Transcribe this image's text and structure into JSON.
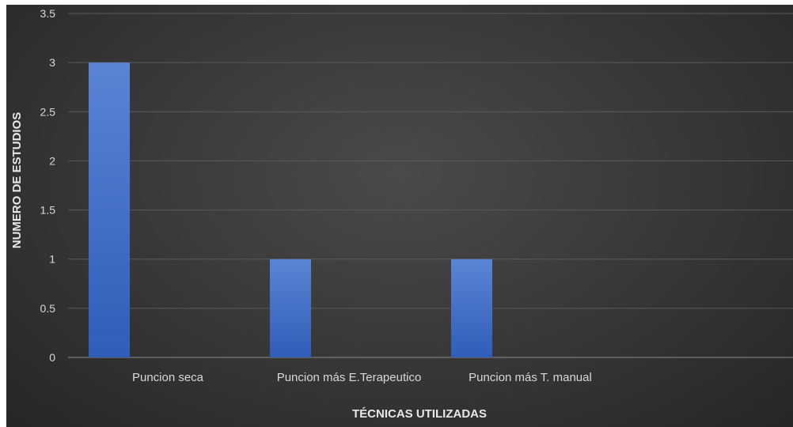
{
  "chart_data": {
    "type": "bar",
    "title": "",
    "xlabel": "TÉCNICAS UTILIZADAS",
    "ylabel": "NUMERO DE ESTUDIOS",
    "categories": [
      "Puncion seca",
      "Puncion más E.Terapeutico",
      "Puncion más T. manual",
      ""
    ],
    "values": [
      3,
      1,
      1,
      null
    ],
    "ylim": [
      0,
      3.5
    ],
    "yticks": [
      "0",
      "0.5",
      "1",
      "1.5",
      "2",
      "2.5",
      "3",
      "3.5"
    ],
    "grid": true,
    "legend": "none",
    "colors": {
      "bar": "#4472c4",
      "background": "#3a3a3a",
      "gridline": "#5a5a5a",
      "text": "#d9d9d9"
    }
  }
}
